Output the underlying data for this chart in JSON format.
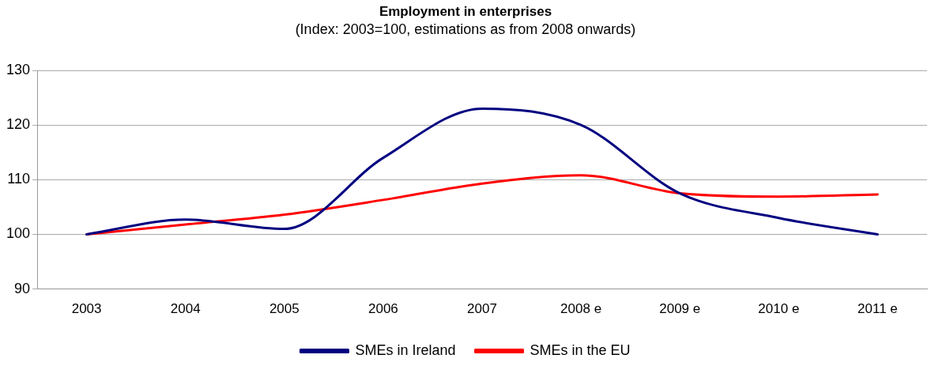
{
  "chart_data": {
    "type": "line",
    "title": "Employment in enterprises",
    "subtitle": "(Index: 2003=100, estimations as from 2008 onwards)",
    "categories": [
      "2003",
      "2004",
      "2005",
      "2006",
      "2007",
      "2008 e",
      "2009 e",
      "2010 e",
      "2011 e"
    ],
    "series": [
      {
        "name": "SMEs in Ireland",
        "color": "#000080",
        "values": [
          100,
          102.7,
          101,
          114,
          123,
          120,
          107.5,
          103,
          100
        ]
      },
      {
        "name": "SMEs in the EU",
        "color": "#ff0000",
        "values": [
          100,
          101.8,
          103.6,
          106.3,
          109.3,
          110.8,
          107.5,
          106.9,
          107.3
        ]
      }
    ],
    "ylim": [
      90,
      130
    ],
    "yticks": [
      90,
      100,
      110,
      120,
      130
    ],
    "grid": "y",
    "legend": "bottom",
    "marker": "none",
    "line_style": "solid"
  }
}
